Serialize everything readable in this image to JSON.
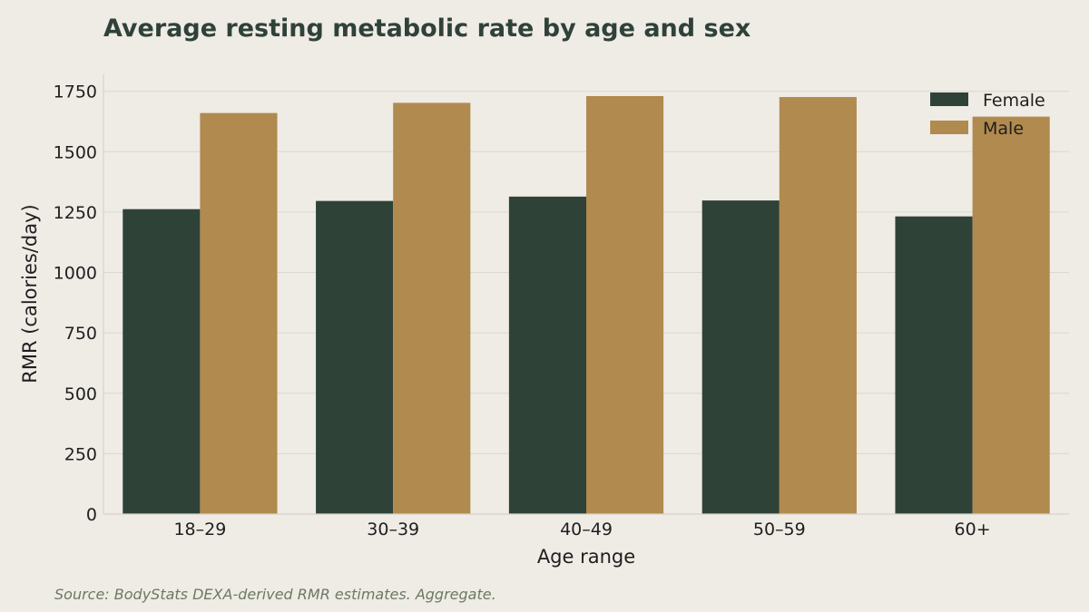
{
  "chart_data": {
    "type": "bar",
    "title": "Average resting metabolic rate by age and sex",
    "xlabel": "Age range",
    "ylabel": "RMR (calories/day)",
    "categories": [
      "18–29",
      "30–39",
      "40–49",
      "50–59",
      "60+"
    ],
    "series": [
      {
        "name": "Female",
        "color": "#2e4238",
        "values": [
          1262,
          1296,
          1314,
          1298,
          1232
        ]
      },
      {
        "name": "Male",
        "color": "#b08a4e",
        "values": [
          1660,
          1702,
          1730,
          1726,
          1645
        ]
      }
    ],
    "ylim": [
      0,
      1820
    ],
    "yticks": [
      0,
      250,
      500,
      750,
      1000,
      1250,
      1500,
      1750
    ],
    "grid": "horizontal",
    "legend": "top-right",
    "source": "Source: BodyStats DEXA-derived RMR estimates. Aggregate."
  }
}
